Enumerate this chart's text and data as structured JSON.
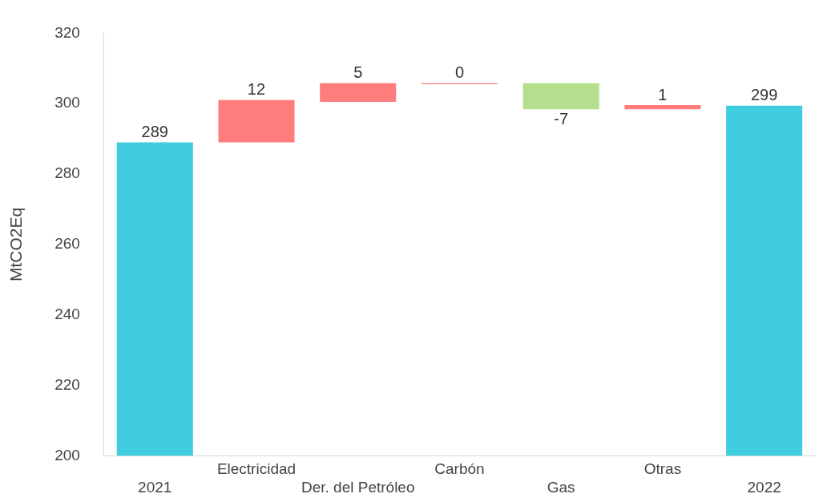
{
  "chart_data": {
    "type": "bar",
    "ylabel": "MtCO2Eq",
    "categories": [
      "2021",
      "Electricidad",
      "Der. del Petróleo",
      "Carbón",
      "Gas",
      "Otras",
      "2022"
    ],
    "base": [
      200,
      289,
      300.5,
      305.5,
      305.8,
      298.4,
      200
    ],
    "values": [
      89,
      12,
      5.3,
      0.3,
      -7.4,
      1.2,
      99.4
    ],
    "colors": [
      "#40cde0",
      "#ff7c7c",
      "#ff7c7c",
      "#ff7c7c",
      "#b5df8c",
      "#ff7c7c",
      "#40cde0"
    ],
    "value_labels": [
      "289",
      "12",
      "5",
      "0",
      "-7",
      "1",
      "299"
    ],
    "ylim": [
      200,
      320
    ],
    "yticks": [
      200,
      220,
      240,
      260,
      280,
      300,
      320
    ]
  }
}
